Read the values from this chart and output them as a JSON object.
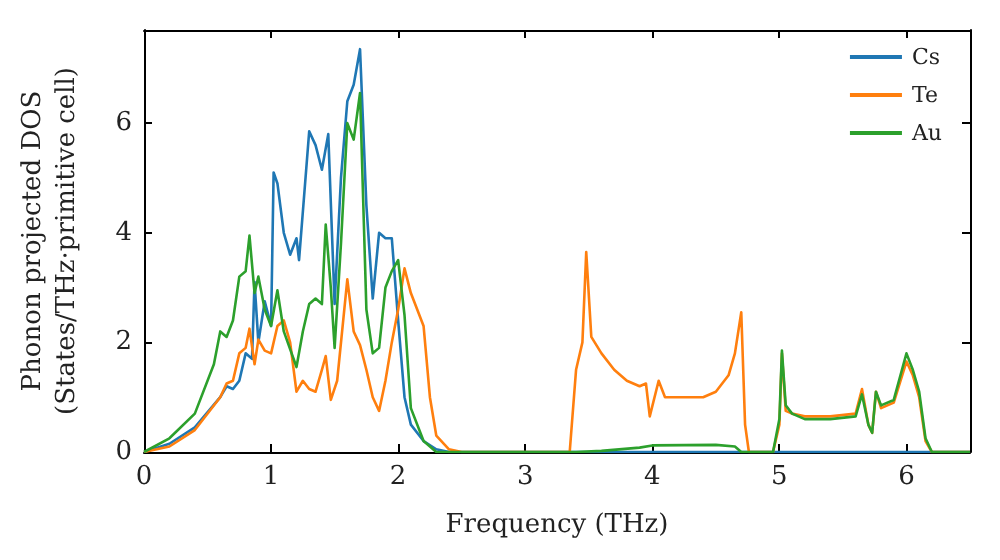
{
  "chart_data": {
    "type": "line",
    "xlabel": "Frequency (THz)",
    "ylabel": "Phonon projected DOS\n(States/THz·primitive cell)",
    "xlim": [
      0,
      6.5
    ],
    "xticks": [
      0,
      1,
      2,
      3,
      4,
      5,
      6
    ],
    "ylim": [
      0,
      7.7
    ],
    "yticks": [
      0,
      2,
      4,
      6
    ],
    "legend": "top right",
    "grid": false,
    "marker": "none",
    "line_style": "solid",
    "series": [
      {
        "name": "Cs",
        "color": "#1f77b4",
        "x": [
          0,
          0.2,
          0.4,
          0.6,
          0.65,
          0.7,
          0.75,
          0.8,
          0.85,
          0.87,
          0.9,
          0.95,
          1.0,
          1.02,
          1.05,
          1.1,
          1.15,
          1.2,
          1.22,
          1.3,
          1.35,
          1.4,
          1.45,
          1.5,
          1.55,
          1.6,
          1.65,
          1.7,
          1.75,
          1.8,
          1.85,
          1.9,
          1.95,
          2.0,
          2.05,
          2.1,
          2.2,
          2.3,
          2.4,
          6.5
        ],
        "values": [
          0,
          0.15,
          0.45,
          1.0,
          1.2,
          1.15,
          1.3,
          1.8,
          1.7,
          3.1,
          2.0,
          2.75,
          2.3,
          5.1,
          4.9,
          4.0,
          3.6,
          3.9,
          3.5,
          5.85,
          5.6,
          5.15,
          5.8,
          2.7,
          5.0,
          6.4,
          6.7,
          7.35,
          4.5,
          2.8,
          4.0,
          3.9,
          3.9,
          2.4,
          1.0,
          0.5,
          0.2,
          0.05,
          0,
          0
        ]
      },
      {
        "name": "Te",
        "color": "#ff7f0e",
        "x": [
          0,
          0.2,
          0.4,
          0.6,
          0.65,
          0.7,
          0.75,
          0.8,
          0.83,
          0.87,
          0.9,
          0.95,
          1.0,
          1.05,
          1.1,
          1.15,
          1.2,
          1.25,
          1.3,
          1.35,
          1.4,
          1.43,
          1.47,
          1.52,
          1.6,
          1.65,
          1.7,
          1.75,
          1.8,
          1.85,
          1.9,
          1.95,
          2.0,
          2.05,
          2.1,
          2.2,
          2.25,
          2.3,
          2.4,
          2.5,
          3.35,
          3.4,
          3.45,
          3.48,
          3.52,
          3.6,
          3.7,
          3.8,
          3.9,
          3.95,
          3.98,
          4.05,
          4.1,
          4.2,
          4.4,
          4.5,
          4.6,
          4.65,
          4.7,
          4.73,
          4.76,
          4.95,
          5.0,
          5.02,
          5.05,
          5.1,
          5.2,
          5.4,
          5.6,
          5.65,
          5.7,
          5.73,
          5.76,
          5.8,
          5.9,
          6.0,
          6.05,
          6.1,
          6.15,
          6.2,
          6.5
        ],
        "values": [
          0,
          0.1,
          0.4,
          1.0,
          1.25,
          1.3,
          1.8,
          1.9,
          2.25,
          1.6,
          2.05,
          1.85,
          1.8,
          2.3,
          2.4,
          2.0,
          1.1,
          1.3,
          1.15,
          1.1,
          1.5,
          1.75,
          0.95,
          1.3,
          3.15,
          2.2,
          1.95,
          1.5,
          1.0,
          0.75,
          1.3,
          2.0,
          2.6,
          3.35,
          2.9,
          2.3,
          1.0,
          0.3,
          0.05,
          0,
          0,
          1.5,
          2.0,
          3.65,
          2.1,
          1.8,
          1.5,
          1.3,
          1.2,
          1.25,
          0.65,
          1.3,
          1.0,
          1.0,
          1.0,
          1.1,
          1.4,
          1.8,
          2.55,
          0.5,
          0,
          0,
          0.5,
          1.8,
          0.75,
          0.7,
          0.65,
          0.65,
          0.7,
          1.15,
          0.5,
          0.35,
          1.1,
          0.8,
          0.9,
          1.65,
          1.4,
          1.0,
          0.2,
          0,
          0
        ]
      },
      {
        "name": "Au",
        "color": "#2ca02c",
        "x": [
          0,
          0.2,
          0.4,
          0.55,
          0.6,
          0.65,
          0.7,
          0.75,
          0.8,
          0.83,
          0.87,
          0.9,
          0.95,
          1.0,
          1.05,
          1.1,
          1.2,
          1.25,
          1.3,
          1.35,
          1.4,
          1.43,
          1.47,
          1.5,
          1.55,
          1.6,
          1.65,
          1.7,
          1.75,
          1.8,
          1.85,
          1.9,
          1.95,
          2.0,
          2.05,
          2.1,
          2.2,
          2.3,
          3.4,
          3.6,
          3.9,
          4.0,
          4.5,
          4.65,
          4.7,
          4.95,
          5.0,
          5.02,
          5.05,
          5.1,
          5.2,
          5.4,
          5.6,
          5.65,
          5.7,
          5.73,
          5.76,
          5.8,
          5.9,
          6.0,
          6.05,
          6.1,
          6.15,
          6.2,
          6.5
        ],
        "values": [
          0,
          0.25,
          0.7,
          1.6,
          2.2,
          2.1,
          2.4,
          3.2,
          3.3,
          3.95,
          2.9,
          3.2,
          2.6,
          2.3,
          2.95,
          2.2,
          1.55,
          2.2,
          2.7,
          2.8,
          2.7,
          4.15,
          3.0,
          1.9,
          3.8,
          6.0,
          5.7,
          6.55,
          2.6,
          1.8,
          1.9,
          3.0,
          3.3,
          3.5,
          2.5,
          0.8,
          0.2,
          0,
          0,
          0.02,
          0.08,
          0.12,
          0.13,
          0.1,
          0,
          0,
          0.6,
          1.85,
          0.85,
          0.7,
          0.6,
          0.6,
          0.65,
          1.05,
          0.5,
          0.35,
          1.1,
          0.85,
          0.95,
          1.8,
          1.5,
          1.1,
          0.25,
          0,
          0
        ]
      }
    ]
  }
}
